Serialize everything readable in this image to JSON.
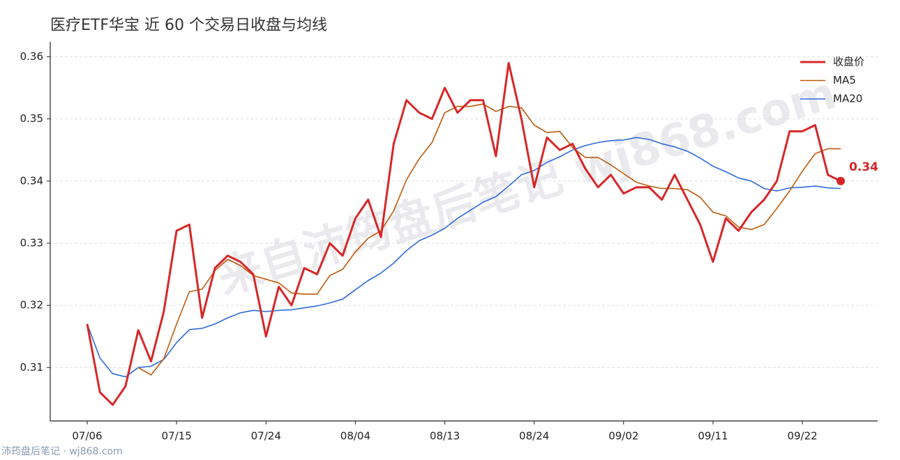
{
  "chart_data": {
    "type": "line",
    "title": "医疗ETF华宝 近 60 个交易日收盘与均线",
    "watermark": "来自沛筠盘后笔记 wj868.com",
    "footer": "沛筠盘后笔记 · wj868.com",
    "categories": [
      "07/06",
      null,
      null,
      null,
      null,
      null,
      null,
      "07/15",
      null,
      null,
      null,
      null,
      null,
      null,
      "07/24",
      null,
      null,
      null,
      null,
      null,
      null,
      "08/04",
      null,
      null,
      null,
      null,
      null,
      null,
      "08/13",
      null,
      null,
      null,
      null,
      null,
      null,
      "08/24",
      null,
      null,
      null,
      null,
      null,
      null,
      "09/02",
      null,
      null,
      null,
      null,
      null,
      null,
      "09/11",
      null,
      null,
      null,
      null,
      null,
      null,
      "09/22",
      null,
      null,
      null
    ],
    "series": [
      {
        "name": "收盘价",
        "color": "#d62728",
        "width": 3,
        "values": [
          0.317,
          0.306,
          0.304,
          0.307,
          0.316,
          0.311,
          0.319,
          0.332,
          0.333,
          0.318,
          0.326,
          0.328,
          0.327,
          0.325,
          0.315,
          0.323,
          0.32,
          0.326,
          0.325,
          0.33,
          0.328,
          0.334,
          0.337,
          0.331,
          0.346,
          0.353,
          0.351,
          0.35,
          0.355,
          0.351,
          0.353,
          0.353,
          0.344,
          0.359,
          0.35,
          0.339,
          0.347,
          0.345,
          0.346,
          0.342,
          0.339,
          0.341,
          0.338,
          0.339,
          0.339,
          0.337,
          0.341,
          0.337,
          0.333,
          0.327,
          0.334,
          0.332,
          0.335,
          0.337,
          0.34,
          0.348,
          0.348,
          0.349,
          0.341,
          0.34
        ],
        "value_labels": [
          null,
          null,
          null,
          null,
          null,
          null,
          null,
          null,
          null,
          null,
          null,
          null,
          null,
          null,
          null,
          null,
          null,
          null,
          null,
          null,
          null,
          null,
          null,
          null,
          null,
          null,
          null,
          null,
          null,
          null,
          null,
          null,
          null,
          null,
          null,
          null,
          null,
          null,
          null,
          null,
          null,
          null,
          null,
          null,
          null,
          null,
          null,
          null,
          null,
          null,
          null,
          null,
          null,
          null,
          null,
          null,
          null,
          null,
          null,
          "0.34"
        ]
      },
      {
        "name": "MA5",
        "color": "#c05a0c",
        "width": 1.6,
        "values": [
          null,
          null,
          null,
          null,
          0.31,
          0.3088,
          0.3114,
          0.317,
          0.3222,
          0.3226,
          0.3256,
          0.3274,
          0.3264,
          0.3248,
          0.3242,
          0.3236,
          0.322,
          0.3218,
          0.3218,
          0.3248,
          0.3258,
          0.3286,
          0.3308,
          0.332,
          0.3352,
          0.3402,
          0.3436,
          0.3462,
          0.351,
          0.352,
          0.352,
          0.3524,
          0.3512,
          0.352,
          0.3518,
          0.349,
          0.3478,
          0.348,
          0.3454,
          0.3438,
          0.3438,
          0.3426,
          0.3412,
          0.3398,
          0.3392,
          0.3388,
          0.3388,
          0.3386,
          0.3374,
          0.335,
          0.3344,
          0.3326,
          0.3322,
          0.333,
          0.3356,
          0.3384,
          0.3416,
          0.3444,
          0.3452,
          0.3452
        ]
      },
      {
        "name": "MA20",
        "color": "#2f6bdb",
        "width": 1.6,
        "values": [
          0.317,
          0.3115,
          0.309,
          0.3085,
          0.31,
          0.3102,
          0.3113,
          0.314,
          0.3161,
          0.3163,
          0.317,
          0.318,
          0.3188,
          0.3192,
          0.319,
          0.3192,
          0.3193,
          0.3196,
          0.3199,
          0.3204,
          0.321,
          0.3225,
          0.324,
          0.3252,
          0.3268,
          0.3288,
          0.3304,
          0.3313,
          0.3324,
          0.334,
          0.3353,
          0.3366,
          0.3375,
          0.3392,
          0.341,
          0.3417,
          0.343,
          0.3439,
          0.345,
          0.3457,
          0.3462,
          0.3465,
          0.3466,
          0.347,
          0.3467,
          0.346,
          0.3455,
          0.3448,
          0.3437,
          0.3424,
          0.3415,
          0.3405,
          0.34,
          0.3388,
          0.3384,
          0.3389,
          0.339,
          0.3392,
          0.3389,
          0.3388
        ]
      }
    ],
    "ylim": [
      0.3014,
      0.3624
    ],
    "yticks": [
      0.31,
      0.32,
      0.33,
      0.34,
      0.35,
      0.36
    ],
    "grid": true,
    "legend": "upper right"
  }
}
